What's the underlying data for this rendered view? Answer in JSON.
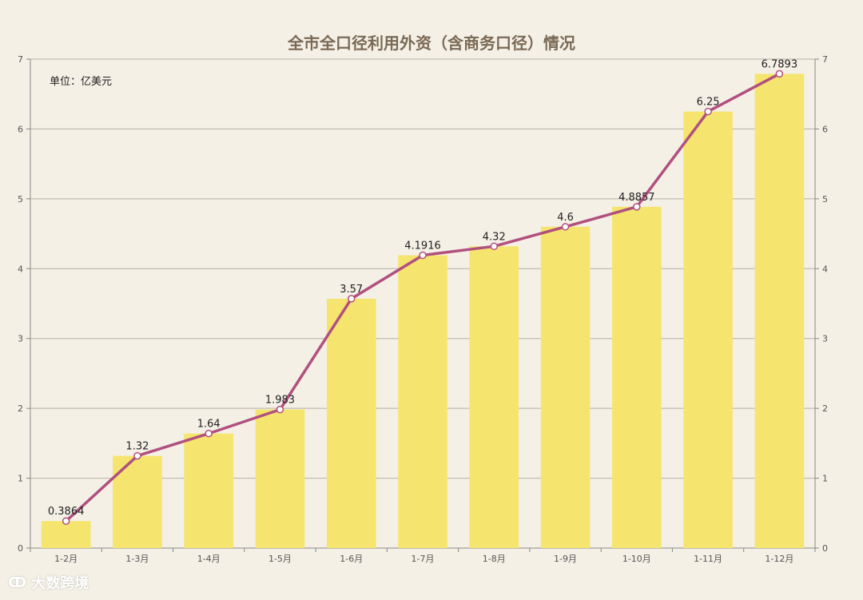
{
  "chart_data": {
    "type": "bar",
    "title": "全市全口径利用外资（含商务口径）情况",
    "unit_label": "单位：亿美元",
    "categories": [
      "1-2月",
      "1-3月",
      "1-4月",
      "1-5月",
      "1-6月",
      "1-7月",
      "1-8月",
      "1-9月",
      "1-10月",
      "1-11月",
      "1-12月"
    ],
    "series": [
      {
        "type": "bar",
        "values": [
          0.3864,
          1.32,
          1.64,
          1.983,
          3.57,
          4.1916,
          4.32,
          4.6,
          4.8857,
          6.25,
          6.7893
        ]
      },
      {
        "type": "line",
        "values": [
          0.3864,
          1.32,
          1.64,
          1.983,
          3.57,
          4.1916,
          4.32,
          4.6,
          4.8857,
          6.25,
          6.7893
        ]
      }
    ],
    "data_labels": [
      "0.3864",
      "1.32",
      "1.64",
      "1.983",
      "3.57",
      "4.1916",
      "4.32",
      "4.6",
      "4.8857",
      "6.25",
      "6.7893"
    ],
    "ylim": [
      0,
      7
    ],
    "yticks": [
      0,
      1,
      2,
      3,
      4,
      5,
      6,
      7
    ],
    "y2ticks": [
      0,
      1,
      2,
      3,
      4,
      5,
      6,
      7
    ],
    "grid": true,
    "colors": {
      "bar": "#f5e56e",
      "line": "#b1507f",
      "marker_fill": "#ffffff"
    }
  },
  "watermark": {
    "icon": "brand-logo-icon",
    "text": "大数跨境"
  }
}
